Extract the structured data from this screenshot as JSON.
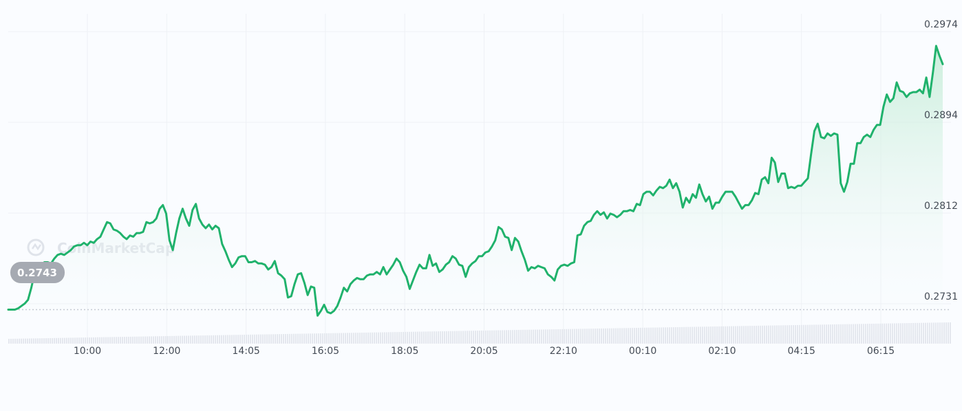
{
  "watermark": "CoinMarketCap",
  "current_price_badge": "0.2743",
  "colors": {
    "line": "#20b26c",
    "area_top": "#c3ecd6",
    "area_bottom": "#fafcff",
    "start_segment": "#ea3943",
    "baseline": "#c5cad3",
    "grid": "#eef1f5",
    "volume": "#e4e7ee",
    "badge_bg": "#a6aab2"
  },
  "chart_data": {
    "type": "line",
    "title": "",
    "xlabel": "",
    "ylabel": "",
    "x_tick_labels": [
      "10:00",
      "12:00",
      "14:05",
      "16:05",
      "18:05",
      "20:05",
      "22:10",
      "00:10",
      "02:10",
      "04:15",
      "06:15"
    ],
    "y_tick_labels": [
      "0.2974",
      "0.2894",
      "0.2812",
      "0.2731"
    ],
    "ylim": [
      0.2715,
      0.2978
    ],
    "reference_line": 0.2743,
    "grid": true,
    "series": [
      {
        "values": [
          0.2743,
          0.2743,
          0.2743,
          0.2744,
          0.2746,
          0.2748,
          0.2751,
          0.2761,
          0.2773,
          0.2779,
          0.278,
          0.2782,
          0.2782,
          0.2781,
          0.2785,
          0.2788,
          0.2789,
          0.2788,
          0.279,
          0.2792,
          0.2795,
          0.2796,
          0.2796,
          0.2798,
          0.2796,
          0.2799,
          0.2798,
          0.2801,
          0.2803,
          0.2809,
          0.2815,
          0.2814,
          0.2809,
          0.2808,
          0.2806,
          0.2803,
          0.2801,
          0.2804,
          0.2803,
          0.2806,
          0.2806,
          0.2807,
          0.2815,
          0.2814,
          0.2815,
          0.2818,
          0.2826,
          0.2829,
          0.2822,
          0.28,
          0.2792,
          0.2806,
          0.2818,
          0.2826,
          0.2818,
          0.2812,
          0.2825,
          0.283,
          0.2818,
          0.2813,
          0.281,
          0.2813,
          0.2809,
          0.2812,
          0.281,
          0.2797,
          0.2791,
          0.2784,
          0.2778,
          0.2781,
          0.2786,
          0.2787,
          0.2787,
          0.2782,
          0.2782,
          0.2783,
          0.2781,
          0.2781,
          0.278,
          0.2776,
          0.2778,
          0.2783,
          0.2773,
          0.2771,
          0.2768,
          0.2753,
          0.2754,
          0.2764,
          0.2772,
          0.2773,
          0.2765,
          0.2755,
          0.2762,
          0.2761,
          0.2738,
          0.2742,
          0.2747,
          0.2741,
          0.274,
          0.2742,
          0.2746,
          0.2753,
          0.2761,
          0.2758,
          0.2764,
          0.2767,
          0.2769,
          0.2768,
          0.2768,
          0.2771,
          0.2772,
          0.2772,
          0.2774,
          0.2772,
          0.2778,
          0.2772,
          0.2776,
          0.278,
          0.2785,
          0.2782,
          0.2775,
          0.277,
          0.276,
          0.2767,
          0.2774,
          0.278,
          0.2777,
          0.2777,
          0.2788,
          0.2779,
          0.2781,
          0.2774,
          0.2776,
          0.278,
          0.2782,
          0.2787,
          0.2785,
          0.278,
          0.2779,
          0.277,
          0.2778,
          0.2781,
          0.2783,
          0.2787,
          0.2787,
          0.279,
          0.2791,
          0.2795,
          0.28,
          0.2811,
          0.2809,
          0.2803,
          0.2802,
          0.2792,
          0.2802,
          0.2799,
          0.2791,
          0.2784,
          0.2775,
          0.2778,
          0.2777,
          0.2779,
          0.2778,
          0.2777,
          0.2772,
          0.277,
          0.2767,
          0.2776,
          0.2779,
          0.278,
          0.2779,
          0.2781,
          0.2782,
          0.2804,
          0.2805,
          0.2812,
          0.2815,
          0.2816,
          0.2821,
          0.2824,
          0.2821,
          0.2823,
          0.2818,
          0.2822,
          0.2821,
          0.2819,
          0.2821,
          0.2824,
          0.2824,
          0.2825,
          0.2824,
          0.283,
          0.2829,
          0.2838,
          0.284,
          0.284,
          0.2837,
          0.2841,
          0.2844,
          0.2843,
          0.2845,
          0.285,
          0.2843,
          0.2847,
          0.284,
          0.2827,
          0.2835,
          0.2831,
          0.2838,
          0.2835,
          0.2846,
          0.2838,
          0.2832,
          0.2836,
          0.2826,
          0.2831,
          0.2831,
          0.2836,
          0.284,
          0.284,
          0.284,
          0.2836,
          0.2831,
          0.2826,
          0.2829,
          0.2829,
          0.2833,
          0.2839,
          0.2838,
          0.285,
          0.2852,
          0.2847,
          0.2868,
          0.2864,
          0.2848,
          0.2855,
          0.2855,
          0.2843,
          0.2844,
          0.2843,
          0.2845,
          0.2845,
          0.2848,
          0.2851,
          0.2871,
          0.289,
          0.2896,
          0.2885,
          0.2884,
          0.2888,
          0.2886,
          0.2888,
          0.2887,
          0.2847,
          0.284,
          0.2848,
          0.2863,
          0.2863,
          0.288,
          0.288,
          0.2885,
          0.2887,
          0.2885,
          0.2891,
          0.2895,
          0.2895,
          0.291,
          0.292,
          0.2914,
          0.2917,
          0.293,
          0.2923,
          0.2922,
          0.2918,
          0.2921,
          0.2922,
          0.2922,
          0.2924,
          0.2921,
          0.2934,
          0.2918,
          0.2938,
          0.296,
          0.2952,
          0.2945
        ]
      }
    ]
  }
}
